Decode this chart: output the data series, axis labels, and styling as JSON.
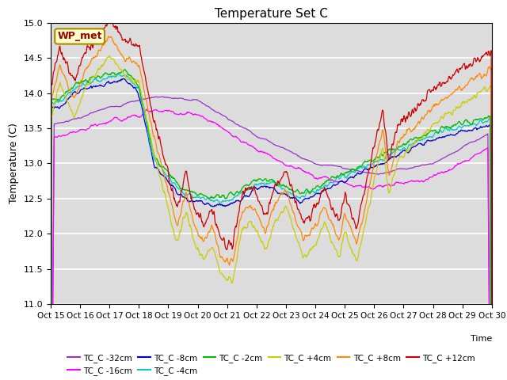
{
  "title": "Temperature Set C",
  "ylabel": "Temperature (C)",
  "ylim": [
    11.0,
    15.0
  ],
  "yticks": [
    11.0,
    11.5,
    12.0,
    12.5,
    13.0,
    13.5,
    14.0,
    14.5,
    15.0
  ],
  "bg_color": "#dcdcdc",
  "series": [
    {
      "label": "TC_C -32cm",
      "color": "#9933cc"
    },
    {
      "label": "TC_C -16cm",
      "color": "#ff00ff"
    },
    {
      "label": "TC_C -8cm",
      "color": "#0000cc"
    },
    {
      "label": "TC_C -4cm",
      "color": "#00cccc"
    },
    {
      "label": "TC_C -2cm",
      "color": "#00bb00"
    },
    {
      "label": "TC_C +4cm",
      "color": "#cccc00"
    },
    {
      "label": "TC_C +8cm",
      "color": "#ff8800"
    },
    {
      "label": "TC_C +12cm",
      "color": "#cc0000"
    }
  ],
  "annotation_label": "WP_met",
  "annotation_color": "#990000",
  "annotation_bg": "#ffffcc",
  "xtick_labels": [
    "Oct 15",
    "Oct 16",
    "Oct 17",
    "Oct 18",
    "Oct 19",
    "Oct 20",
    "Oct 21",
    "Oct 22",
    "Oct 23",
    "Oct 24",
    "Oct 25",
    "Oct 26",
    "Oct 27",
    "Oct 28",
    "Oct 29",
    "Oct 30"
  ],
  "n_points": 900,
  "legend_ncol": 6
}
